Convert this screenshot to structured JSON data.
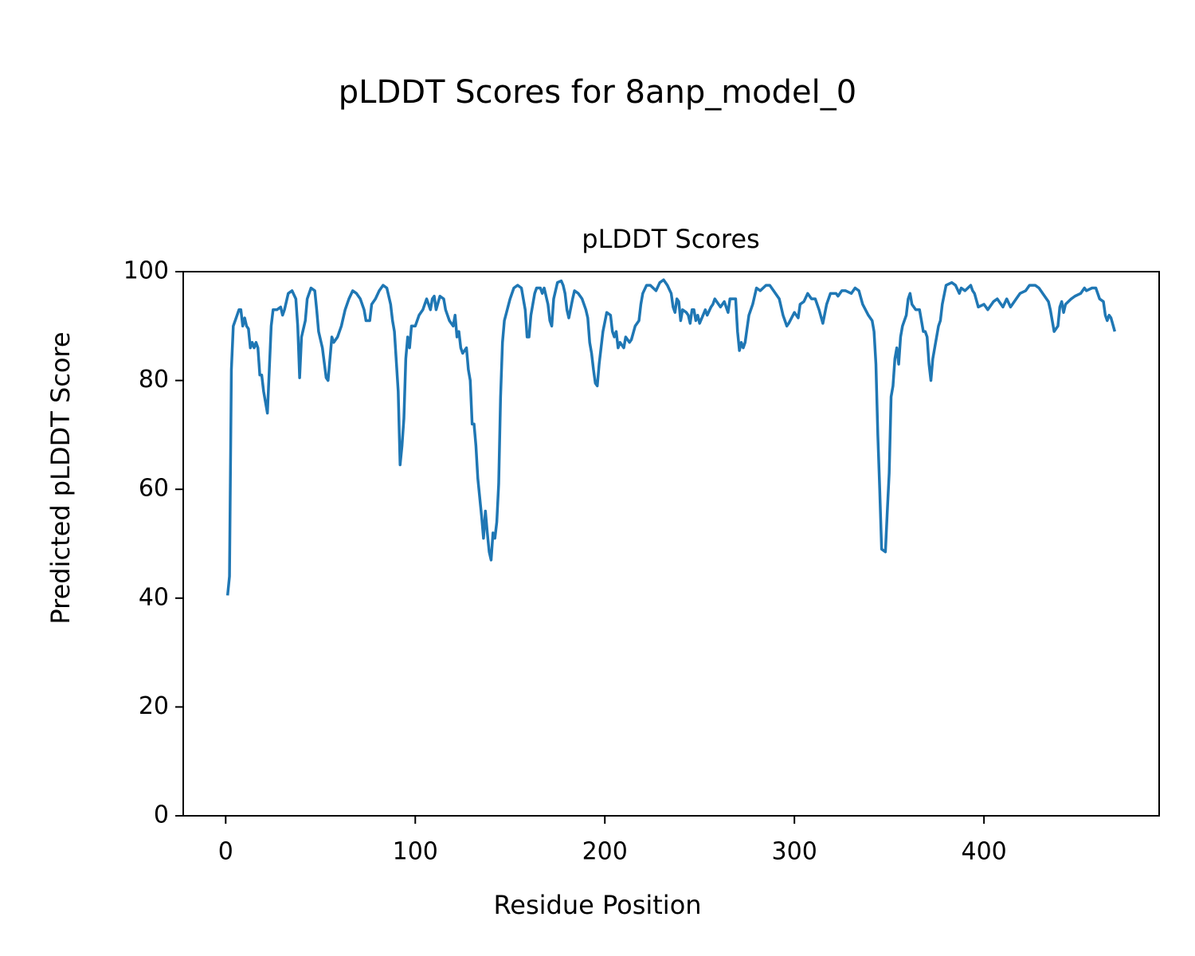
{
  "chart_data": {
    "type": "line",
    "title": "pLDDT Scores for 8anp_model_0",
    "subtitle": "pLDDT Scores",
    "x_label": "Residue Position",
    "y_label": "Predicted pLDDT Score",
    "color": "#1f77b4",
    "xlim": [
      -22.4,
      492.4
    ],
    "ylim": [
      0,
      100
    ],
    "xticks": [
      0,
      100,
      200,
      300,
      400
    ],
    "yticks": [
      0,
      20,
      40,
      60,
      80,
      100
    ],
    "grid": false,
    "x": [
      1,
      2,
      3,
      4,
      6,
      7,
      8,
      9,
      10,
      11,
      12,
      13,
      14,
      15,
      16,
      17,
      18,
      19,
      20,
      22,
      24,
      25,
      27,
      29,
      30,
      31,
      33,
      35,
      37,
      38,
      39,
      40,
      42,
      43,
      45,
      47,
      48,
      49,
      51,
      53,
      54,
      56,
      57,
      59,
      61,
      63,
      65,
      67,
      69,
      71,
      73,
      74,
      76,
      77,
      79,
      81,
      83,
      85,
      87,
      88,
      89,
      91,
      92,
      93,
      94,
      95,
      96,
      97,
      98,
      100,
      102,
      104,
      105,
      106,
      108,
      109,
      110,
      111,
      113,
      115,
      116,
      118,
      120,
      121,
      122,
      123,
      124,
      125,
      126,
      127,
      128,
      129,
      130,
      131,
      132,
      133,
      135,
      136,
      137,
      138,
      139,
      140,
      141,
      142,
      143,
      144,
      145,
      146,
      147,
      150,
      152,
      154,
      156,
      158,
      159,
      160,
      161,
      163,
      164,
      166,
      167,
      168,
      170,
      171,
      172,
      173,
      175,
      177,
      178,
      179,
      180,
      181,
      183,
      184,
      186,
      188,
      190,
      191,
      192,
      193,
      194,
      195,
      196,
      197,
      199,
      201,
      203,
      204,
      205,
      206,
      207,
      208,
      210,
      211,
      213,
      214,
      216,
      218,
      219,
      220,
      222,
      224,
      227,
      229,
      231,
      233,
      235,
      236,
      237,
      238,
      239,
      240,
      241,
      243,
      244,
      245,
      246,
      247,
      248,
      249,
      250,
      253,
      254,
      256,
      257,
      258,
      261,
      263,
      265,
      266,
      269,
      270,
      271,
      272,
      273,
      274,
      276,
      278,
      280,
      282,
      285,
      287,
      289,
      292,
      294,
      296,
      297,
      300,
      302,
      303,
      305,
      307,
      309,
      311,
      313,
      315,
      317,
      319,
      322,
      323,
      325,
      327,
      330,
      332,
      334,
      336,
      339,
      341,
      342,
      343,
      344,
      345,
      346,
      348,
      349,
      350,
      351,
      352,
      353,
      354,
      355,
      356,
      357,
      359,
      360,
      361,
      362,
      364,
      366,
      367,
      368,
      369,
      370,
      371,
      372,
      373,
      374,
      376,
      377,
      378,
      380,
      383,
      385,
      387,
      388,
      390,
      393,
      394,
      395,
      397,
      400,
      402,
      405,
      407,
      410,
      412,
      414,
      417,
      419,
      422,
      424,
      427,
      429,
      431,
      434,
      435,
      436,
      437,
      439,
      440,
      441,
      442,
      443,
      446,
      448,
      451,
      453,
      454,
      457,
      459,
      461,
      463,
      464,
      465,
      466,
      467,
      469
    ],
    "values": [
      40.5,
      44,
      82,
      90,
      92,
      93,
      93,
      90,
      91.5,
      90,
      89.5,
      86,
      87,
      86,
      87,
      86,
      81,
      81,
      78,
      74,
      90,
      93,
      93,
      93.5,
      92,
      93,
      96,
      96.5,
      95,
      90,
      80.5,
      88,
      91,
      95,
      97,
      96.5,
      93,
      89,
      86,
      80.5,
      80,
      88,
      87,
      88,
      90,
      93,
      95,
      96.5,
      96,
      95,
      93,
      91,
      91,
      94,
      95,
      96.5,
      97.5,
      97,
      94,
      91,
      89,
      78,
      64.5,
      68,
      73,
      84,
      88,
      86,
      90,
      90,
      92,
      93,
      94,
      95,
      93,
      95,
      95.5,
      93,
      95.5,
      95,
      93,
      91,
      90,
      92,
      88,
      89,
      86,
      85,
      85.5,
      86,
      82,
      80,
      72,
      72,
      68,
      62,
      55,
      51,
      56,
      52,
      48.5,
      47,
      52,
      51,
      54,
      61,
      77,
      87,
      91,
      95,
      97,
      97.5,
      97,
      93,
      88,
      88,
      92,
      96,
      97,
      97,
      96,
      97,
      94,
      91,
      90,
      95,
      98,
      98.3,
      97.5,
      96,
      93,
      91.5,
      95,
      96.5,
      96,
      95,
      93,
      91.5,
      87,
      85,
      82,
      79.5,
      79,
      83,
      89,
      92.5,
      92,
      89,
      88,
      89,
      86,
      87,
      86,
      88,
      87,
      87.5,
      90,
      91,
      94,
      96,
      97.5,
      97.5,
      96.5,
      98,
      98.5,
      97.5,
      96,
      93.5,
      92.5,
      95,
      94.5,
      91,
      93,
      92.5,
      92,
      90.5,
      93,
      93,
      91,
      92,
      90.5,
      93,
      92,
      93.5,
      94,
      95,
      93.5,
      94.5,
      92.5,
      95,
      95,
      89,
      85.5,
      87,
      86,
      87,
      92,
      94,
      97,
      96.5,
      97.5,
      97.5,
      96.5,
      95,
      92,
      90,
      90.5,
      92.5,
      91.5,
      94,
      94.5,
      96,
      95,
      95,
      93,
      90.5,
      94,
      96,
      96,
      95.5,
      96.5,
      96.5,
      96,
      97,
      96.5,
      94,
      92,
      91,
      89,
      83,
      70,
      60,
      49,
      48.5,
      56,
      63,
      77,
      79,
      84,
      86,
      83,
      88,
      90,
      92,
      95,
      96,
      94,
      93,
      93,
      91,
      89,
      89,
      88,
      83,
      80,
      84,
      86,
      90,
      91,
      94,
      97.5,
      98,
      97.5,
      96,
      97,
      96.5,
      97.5,
      96.5,
      96,
      93.5,
      94,
      93,
      94.5,
      95,
      93.5,
      95,
      93.5,
      95,
      96,
      96.5,
      97.5,
      97.5,
      97,
      96,
      94.5,
      93,
      91,
      89,
      90,
      93.5,
      94.5,
      92.5,
      94,
      95,
      95.5,
      96,
      97,
      96.5,
      97,
      97,
      95,
      94.5,
      92,
      91,
      92,
      91.5,
      89
    ]
  }
}
